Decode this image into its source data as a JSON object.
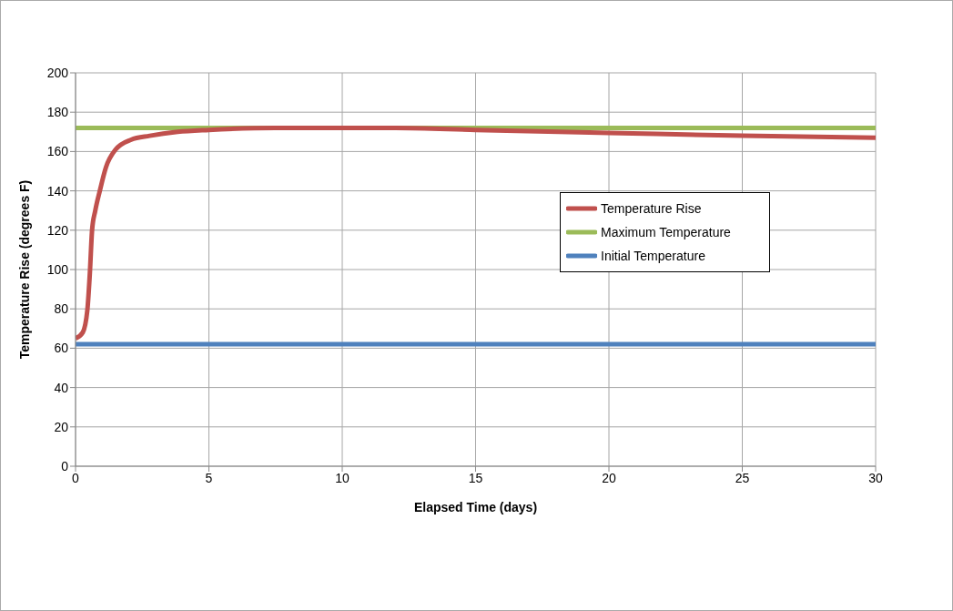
{
  "chart_data": {
    "type": "line",
    "xlabel": "Elapsed Time (days)",
    "ylabel": "Temperature Rise (degrees F)",
    "xlim": [
      0,
      30
    ],
    "xticks": [
      0,
      5,
      10,
      15,
      20,
      25,
      30
    ],
    "ylim": [
      0,
      200
    ],
    "yticks": [
      0,
      20,
      40,
      60,
      80,
      100,
      120,
      140,
      160,
      180,
      200
    ],
    "grid": true,
    "legend": "right",
    "marker": "none",
    "line_style": "solid",
    "series": [
      {
        "name": "Temperature Rise",
        "color": "#c0504d",
        "x": [
          0,
          0.27,
          0.44,
          0.54,
          0.62,
          0.74,
          0.91,
          1.14,
          1.5,
          2.08,
          2.78,
          3.83,
          5,
          7.5,
          10,
          12,
          15,
          20,
          25,
          30
        ],
        "values": [
          65,
          68,
          79,
          99,
          120,
          130,
          140,
          152,
          161,
          166,
          168,
          170,
          171,
          172,
          172,
          172,
          171,
          169.5,
          168,
          167
        ]
      },
      {
        "name": "Maximum Temperature",
        "color": "#9bbb59",
        "x": [
          0,
          30
        ],
        "values": [
          172,
          172
        ]
      },
      {
        "name": "Initial Temperature",
        "color": "#4f81bd",
        "x": [
          0,
          30
        ],
        "values": [
          62,
          62
        ]
      }
    ]
  }
}
